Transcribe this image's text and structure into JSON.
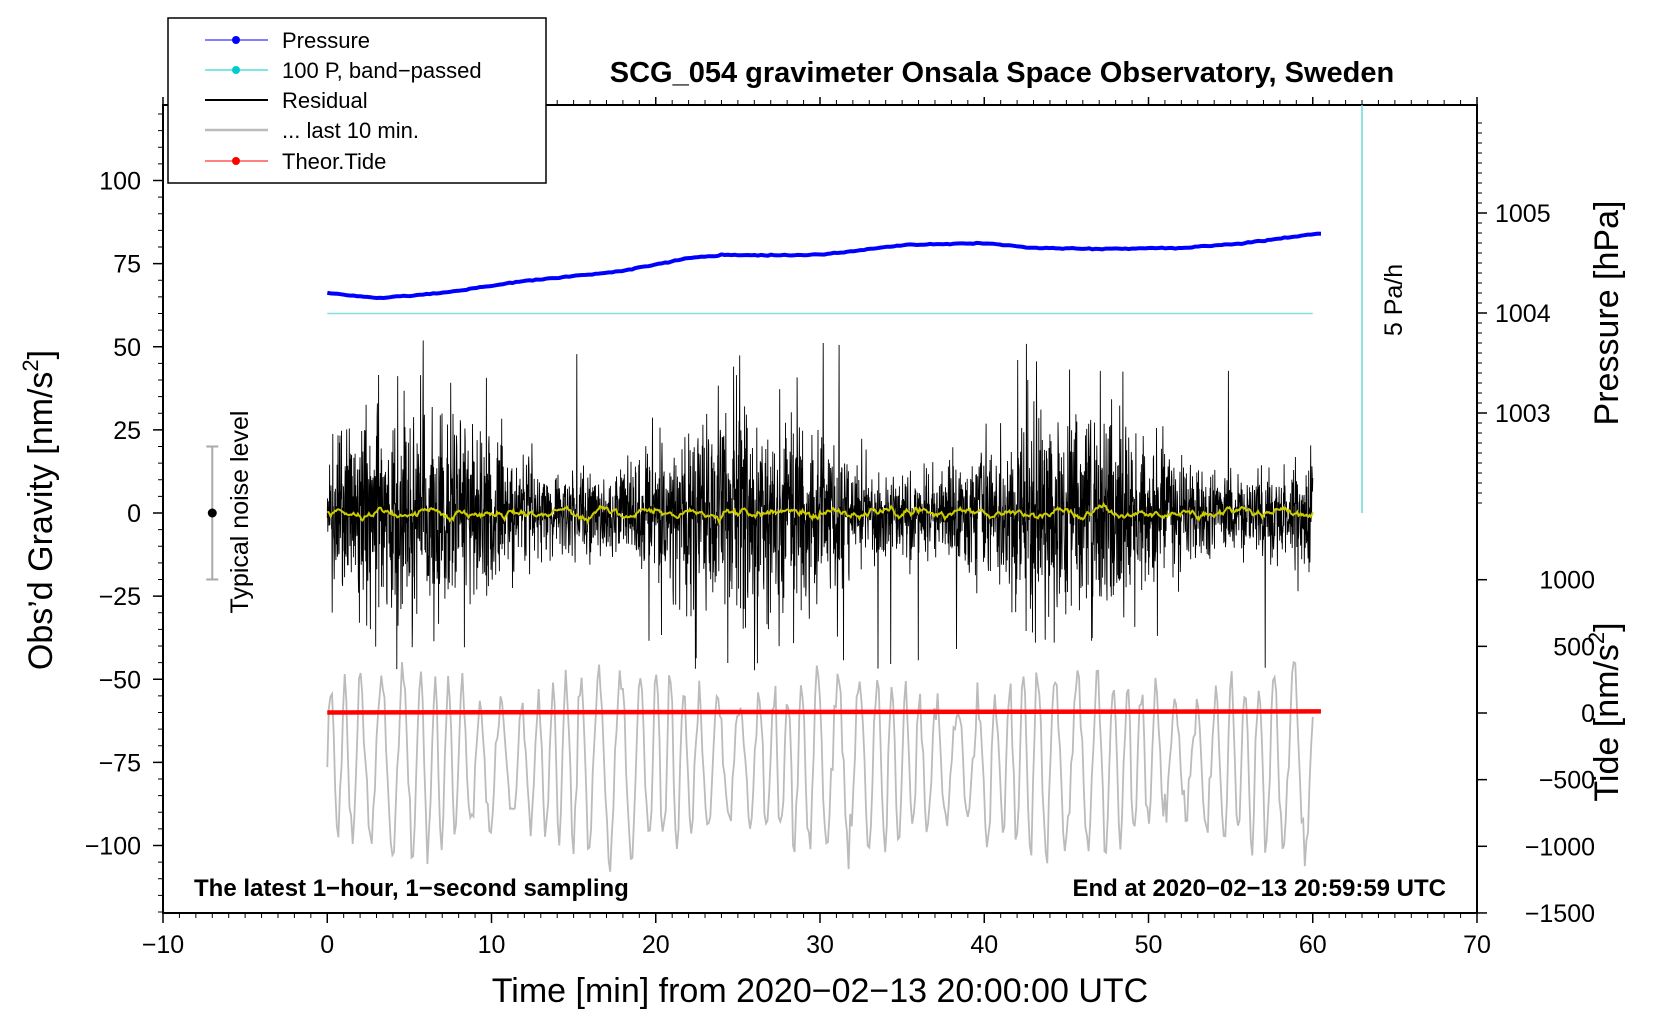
{
  "chart_data": {
    "type": "line",
    "title": "SCG_054 gravimeter Onsala Space Observatory, Sweden",
    "xlabel": "Time [min] from 2020−02−13 20:00:00 UTC",
    "ylabel_left_main": "Obs’d Gravity [nm/s",
    "ylabel_left_sup": "2",
    "ylabel_left_close": "]",
    "ylabel_right_pressure": "Pressure [hPa]",
    "ylabel_right_tide_main": "Tide [nm/s",
    "ylabel_right_tide_sup": "2",
    "ylabel_right_tide_close": "]",
    "xlim": [
      -10,
      70
    ],
    "ylim": [
      -120,
      120
    ],
    "x_ticks": [
      "−10",
      "0",
      "10",
      "20",
      "30",
      "40",
      "50",
      "60",
      "70"
    ],
    "y_ticks": [
      "100",
      "75",
      "50",
      "25",
      "0",
      "−25",
      "−50",
      "−75",
      "−100"
    ],
    "pressure_axis": {
      "ticks": [
        "1005",
        "1004",
        "1003"
      ],
      "values": [
        1005,
        1004,
        1003
      ]
    },
    "tide_axis": {
      "ticks": [
        "1000",
        "500",
        "0",
        "−500",
        "−1000",
        "−1500"
      ],
      "values": [
        1000,
        500,
        0,
        -500,
        -1000,
        -1500
      ]
    },
    "legend": [
      {
        "label": "Pressure",
        "color": "#0000ff"
      },
      {
        "label": "100 P, band−passed",
        "color": "#00cccc"
      },
      {
        "label": "Residual",
        "color": "#000000"
      },
      {
        "label": "... last 10 min.",
        "color": "#bbbbbb"
      },
      {
        "label": "Theor.Tide",
        "color": "#ff0000"
      }
    ],
    "series": [
      {
        "name": "Pressure",
        "unit": "hPa",
        "x": [
          0,
          3,
          7,
          12,
          18,
          22,
          24,
          30,
          35,
          40,
          43,
          47,
          52,
          56,
          60.5
        ],
        "values": [
          1004.2,
          1004.15,
          1004.2,
          1004.32,
          1004.42,
          1004.55,
          1004.58,
          1004.58,
          1004.68,
          1004.7,
          1004.65,
          1004.64,
          1004.65,
          1004.7,
          1004.8
        ]
      },
      {
        "name": "100 P, band−passed",
        "unit": "nm/s2",
        "x": [
          0,
          60
        ],
        "values": [
          60,
          60
        ]
      },
      {
        "name": "Residual",
        "unit": "nm/s2",
        "x_range": [
          0,
          60
        ],
        "mean": 0,
        "typical_amplitude": 20,
        "extremes": [
          52,
          -48
        ]
      },
      {
        "name": "Residual smoothed",
        "unit": "nm/s2",
        "x_range": [
          0,
          60
        ],
        "mean": 0,
        "typical_amplitude": 2
      },
      {
        "name": "... last 10 min.",
        "unit": "nm/s2",
        "x_range": [
          0,
          60
        ],
        "mean": -75,
        "typical_amplitude": 20
      },
      {
        "name": "Theor.Tide",
        "unit": "nm/s2",
        "x": [
          0,
          60.5
        ],
        "values": [
          4,
          12
        ]
      }
    ],
    "noise_level": {
      "label": "Typical noise level",
      "x": -7,
      "center": 0,
      "range": [
        -20,
        20
      ]
    },
    "vertical_scale_bar": {
      "label": "5 Pa/h",
      "x": 63
    },
    "annotations": {
      "bottom_left": "The latest 1−hour, 1−second sampling",
      "bottom_right": "End at 2020−02−13 20:59:59 UTC"
    }
  }
}
